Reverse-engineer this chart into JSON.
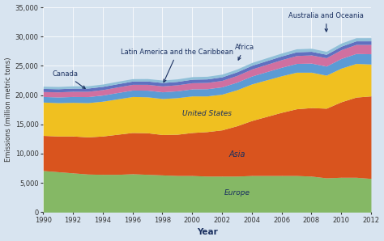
{
  "years": [
    1990,
    1991,
    1992,
    1993,
    1994,
    1995,
    1996,
    1997,
    1998,
    1999,
    2000,
    2001,
    2002,
    2003,
    2004,
    2005,
    2006,
    2007,
    2008,
    2009,
    2010,
    2011,
    2012
  ],
  "Europe": [
    7100,
    6900,
    6700,
    6500,
    6450,
    6450,
    6550,
    6450,
    6350,
    6250,
    6250,
    6150,
    6150,
    6150,
    6250,
    6250,
    6250,
    6250,
    6150,
    5850,
    5950,
    5950,
    5750
  ],
  "Asia": [
    6000,
    6100,
    6300,
    6350,
    6550,
    6850,
    7050,
    7100,
    6900,
    7050,
    7350,
    7600,
    7900,
    8600,
    9400,
    10100,
    10800,
    11400,
    11700,
    11900,
    12900,
    13700,
    14100
  ],
  "United_States": [
    5700,
    5700,
    5750,
    5850,
    5950,
    6050,
    6150,
    6150,
    6150,
    6250,
    6250,
    6100,
    6100,
    6150,
    6250,
    6250,
    6250,
    6250,
    6050,
    5650,
    5750,
    5750,
    5450
  ],
  "Latin_America": [
    950,
    970,
    1000,
    1030,
    1050,
    1080,
    1100,
    1130,
    1150,
    1170,
    1200,
    1230,
    1250,
    1300,
    1350,
    1400,
    1450,
    1500,
    1550,
    1550,
    1650,
    1700,
    1750
  ],
  "Africa": [
    850,
    870,
    890,
    910,
    930,
    955,
    975,
    995,
    1010,
    1030,
    1055,
    1075,
    1100,
    1150,
    1200,
    1250,
    1300,
    1350,
    1400,
    1430,
    1500,
    1550,
    1600
  ],
  "Canada": [
    530,
    535,
    540,
    545,
    550,
    555,
    560,
    570,
    580,
    580,
    600,
    600,
    610,
    620,
    630,
    630,
    630,
    640,
    620,
    580,
    600,
    610,
    610
  ],
  "Australia": [
    380,
    385,
    390,
    395,
    400,
    410,
    415,
    420,
    425,
    430,
    440,
    450,
    460,
    470,
    480,
    490,
    500,
    510,
    520,
    510,
    530,
    535,
    540
  ],
  "colors": {
    "Europe": "#85b865",
    "Asia": "#d9541e",
    "United_States": "#f0c020",
    "Latin_America": "#5b9bd5",
    "Africa": "#d070a0",
    "Canada": "#6070c0",
    "Australia": "#90c0d8"
  },
  "annotation_color": "#1a3060",
  "background_color": "#d8e4f0",
  "ylabel": "Emissions (million metric tons)",
  "xlabel": "Year",
  "ylim": [
    0,
    35000
  ],
  "yticks": [
    0,
    5000,
    10000,
    15000,
    20000,
    25000,
    30000,
    35000
  ]
}
